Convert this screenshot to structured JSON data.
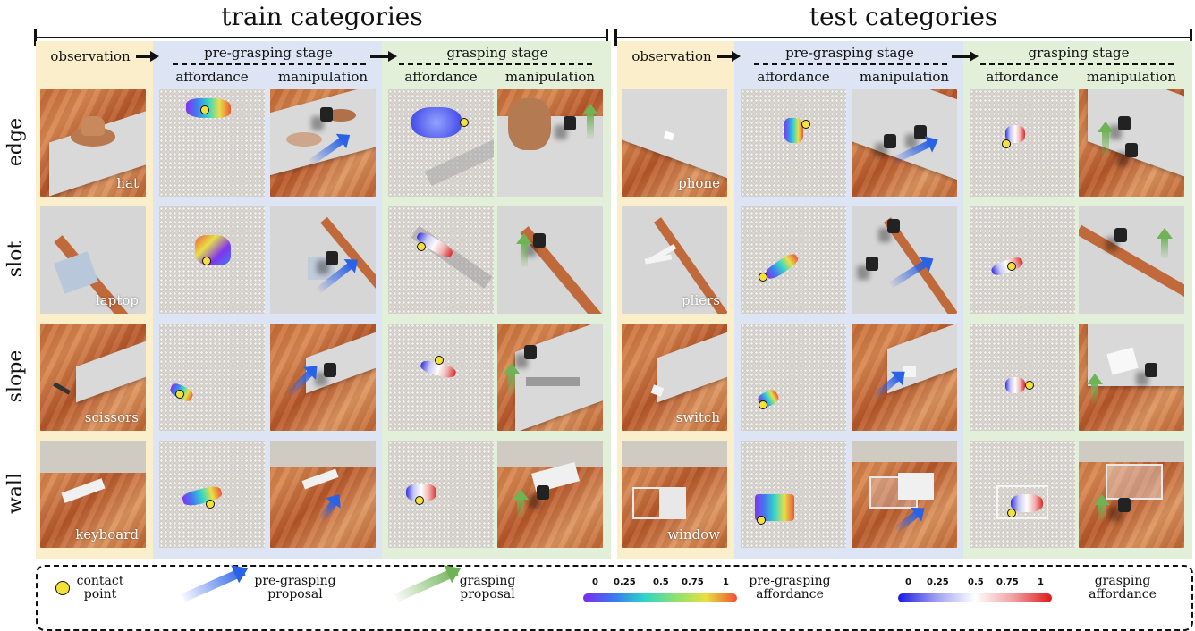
{
  "titles": {
    "train": "train categories",
    "test": "test categories"
  },
  "headers": {
    "observation": "observation",
    "pre_grasping_stage": "pre-grasping stage",
    "grasping_stage": "grasping stage",
    "affordance": "affordance",
    "manipulation": "manipulation"
  },
  "rows": [
    {
      "label": "edge",
      "train_object": "hat",
      "test_object": "phone"
    },
    {
      "label": "slot",
      "train_object": "laptop",
      "test_object": "pliers"
    },
    {
      "label": "slope",
      "train_object": "scissors",
      "test_object": "switch"
    },
    {
      "label": "wall",
      "train_object": "keyboard",
      "test_object": "window"
    }
  ],
  "legend": {
    "contact_line1": "contact",
    "contact_line2": "point",
    "pre_proposal_line1": "pre-grasping",
    "pre_proposal_line2": "proposal",
    "grasp_proposal_line1": "grasping",
    "grasp_proposal_line2": "proposal",
    "pre_aff_line1": "pre-grasping",
    "pre_aff_line2": "affordance",
    "grasp_aff_line1": "grasping",
    "grasp_aff_line2": "affordance",
    "ticks": [
      "0",
      "0.25",
      "0.5",
      "0.75",
      "1"
    ]
  },
  "colors": {
    "observation_bg": "#fbeecb",
    "pre_grasping_bg": "#dde4f4",
    "grasping_bg": "#e2efd9",
    "contact_point": "#f4e23a",
    "pre_arrow": "#2a62e6",
    "grasp_arrow": "#6fb356"
  }
}
